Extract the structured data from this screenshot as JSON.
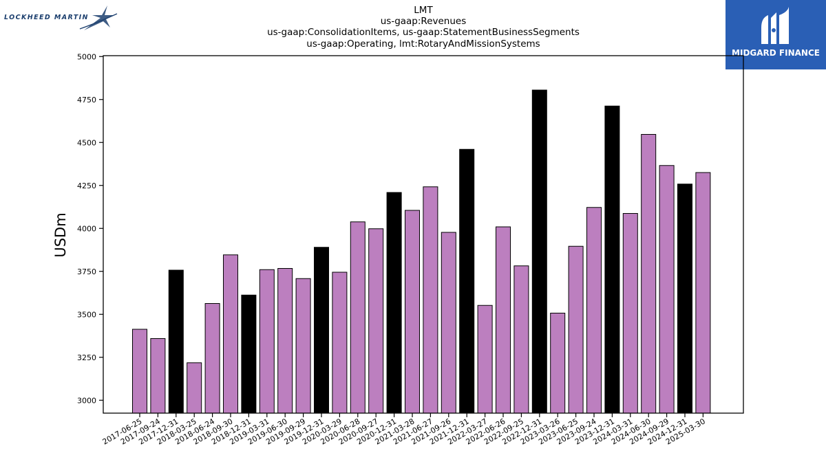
{
  "brand": {
    "left_logo_text": "LOCKHEED MARTIN",
    "right_logo_text": "MIDGARD FINANCE",
    "colors": {
      "lockheed_navy": "#1c3f6e",
      "midgard_blue": "#2a5fb5"
    }
  },
  "chart_data": {
    "type": "bar",
    "title_lines": [
      "LMT",
      "us-gaap:Revenues",
      "us-gaap:ConsolidationItems, us-gaap:StatementBusinessSegments",
      "us-gaap:Operating, lmt:RotaryAndMissionSystems"
    ],
    "xlabel": "",
    "ylabel": "USDm",
    "ylim": [
      2925,
      5005
    ],
    "yticks": [
      3000,
      3250,
      3500,
      3750,
      4000,
      4250,
      4500,
      4750,
      5000
    ],
    "categories": [
      "2017-06-25",
      "2017-09-24",
      "2017-12-31",
      "2018-03-25",
      "2018-06-24",
      "2018-09-30",
      "2018-12-31",
      "2019-03-31",
      "2019-06-30",
      "2019-09-29",
      "2019-12-31",
      "2020-03-29",
      "2020-06-28",
      "2020-09-27",
      "2020-12-31",
      "2021-03-28",
      "2021-06-27",
      "2021-09-26",
      "2021-12-31",
      "2022-03-27",
      "2022-06-26",
      "2022-09-25",
      "2022-12-31",
      "2023-03-26",
      "2023-06-25",
      "2023-09-24",
      "2023-12-31",
      "2024-03-31",
      "2024-06-30",
      "2024-09-29",
      "2024-12-31",
      "2025-03-30"
    ],
    "values": [
      3413,
      3359,
      3757,
      3218,
      3563,
      3846,
      3612,
      3760,
      3767,
      3708,
      3890,
      3745,
      4038,
      3998,
      4209,
      4105,
      4242,
      3977,
      4460,
      3552,
      4009,
      3782,
      4805,
      3507,
      3896,
      4122,
      4712,
      4087,
      4547,
      4366,
      4258,
      4325
    ],
    "highlighted": [
      false,
      false,
      true,
      false,
      false,
      false,
      true,
      false,
      false,
      false,
      true,
      false,
      false,
      false,
      true,
      false,
      false,
      false,
      true,
      false,
      false,
      false,
      true,
      false,
      false,
      false,
      true,
      false,
      false,
      false,
      true,
      false
    ],
    "colors": {
      "bar": "#bc7fbf",
      "highlight": "#000000",
      "edge": "#000000"
    },
    "grid": false,
    "legend": "none"
  }
}
